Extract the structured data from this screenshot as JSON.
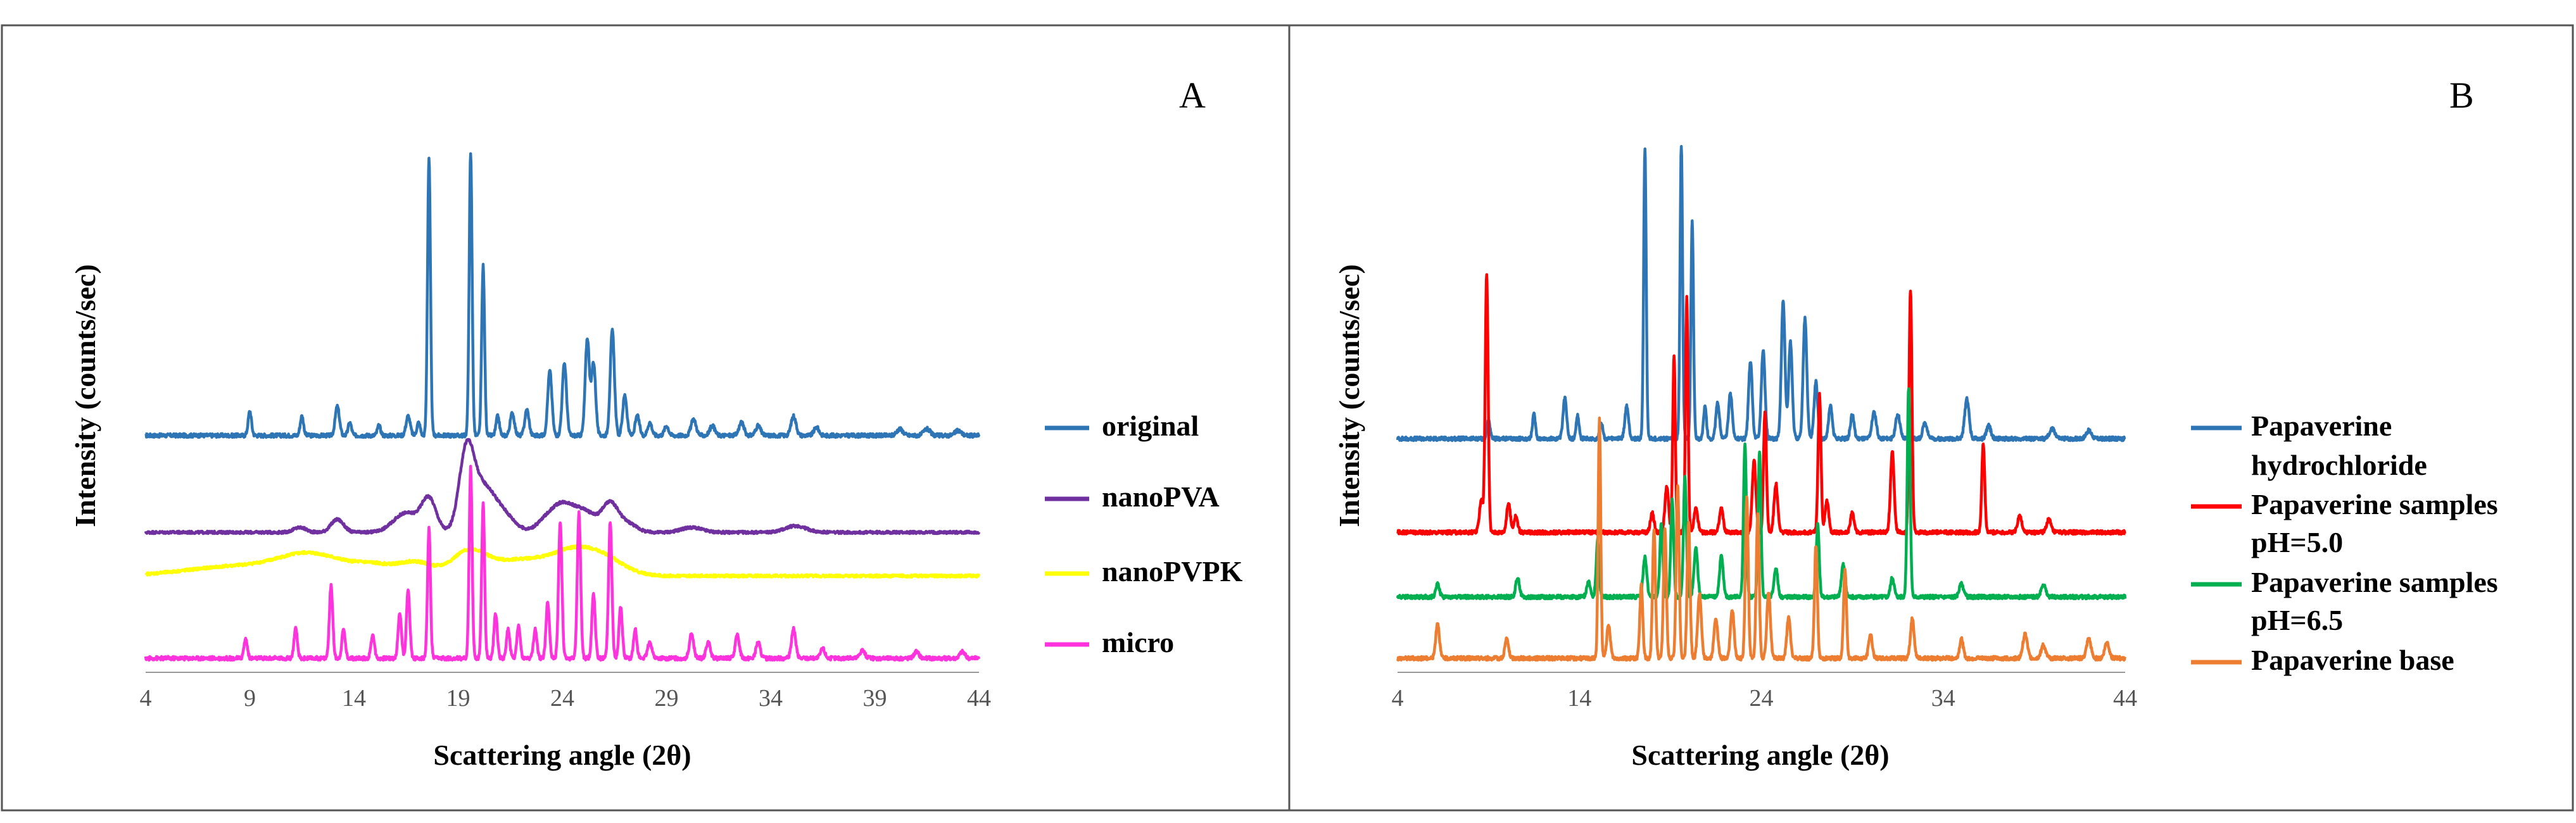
{
  "chart_data": [
    {
      "type": "line",
      "panel_label": "A",
      "xlabel": "Scattering angle (2θ)",
      "ylabel": "Intensity (counts/sec)",
      "xlim": [
        4,
        44
      ],
      "x_ticks": [
        4,
        9,
        14,
        19,
        24,
        29,
        34,
        39,
        44
      ],
      "x_tick_labels": [
        "4",
        "9",
        "14",
        "19",
        "24",
        "29",
        "34",
        "39",
        "44"
      ],
      "ylim": [
        0,
        340
      ],
      "grid": false,
      "legend_position": "right",
      "series": [
        {
          "name": "original",
          "color": "#2E75B6",
          "baseline": 142,
          "noise": 1.2,
          "peaks": [
            [
              9.0,
              15,
              0.08
            ],
            [
              11.5,
              12,
              0.08
            ],
            [
              13.2,
              18,
              0.1
            ],
            [
              13.8,
              8,
              0.08
            ],
            [
              15.2,
              6,
              0.08
            ],
            [
              16.6,
              12,
              0.1
            ],
            [
              17.1,
              8,
              0.08
            ],
            [
              17.6,
              172,
              0.07
            ],
            [
              19.6,
              175,
              0.07
            ],
            [
              20.2,
              105,
              0.07
            ],
            [
              20.9,
              12,
              0.08
            ],
            [
              21.6,
              14,
              0.1
            ],
            [
              22.3,
              16,
              0.1
            ],
            [
              23.4,
              40,
              0.1
            ],
            [
              24.1,
              45,
              0.1
            ],
            [
              25.2,
              60,
              0.1
            ],
            [
              25.5,
              45,
              0.1
            ],
            [
              26.4,
              65,
              0.1
            ],
            [
              27.0,
              25,
              0.1
            ],
            [
              27.6,
              12,
              0.1
            ],
            [
              28.2,
              8,
              0.1
            ],
            [
              29.0,
              6,
              0.1
            ],
            [
              30.3,
              10,
              0.12
            ],
            [
              31.2,
              6,
              0.12
            ],
            [
              32.6,
              8,
              0.12
            ],
            [
              33.4,
              6,
              0.12
            ],
            [
              35.1,
              12,
              0.12
            ],
            [
              36.2,
              5,
              0.12
            ],
            [
              40.2,
              4,
              0.15
            ],
            [
              41.5,
              4,
              0.15
            ],
            [
              43.0,
              3,
              0.15
            ]
          ]
        },
        {
          "name": "nanoPVA",
          "color": "#7030A0",
          "baseline": 82,
          "noise": 0.8,
          "peaks": [
            [
              11.4,
              3,
              0.3
            ],
            [
              13.2,
              8,
              0.3
            ],
            [
              16.5,
              12,
              0.6
            ],
            [
              17.6,
              20,
              0.35
            ],
            [
              19.4,
              45,
              0.35
            ],
            [
              20.2,
              28,
              0.6
            ],
            [
              21.3,
              8,
              0.5
            ],
            [
              23.3,
              8,
              0.5
            ],
            [
              24.1,
              15,
              0.5
            ],
            [
              25.1,
              12,
              0.5
            ],
            [
              26.3,
              18,
              0.4
            ],
            [
              27.2,
              5,
              0.4
            ],
            [
              30.2,
              3,
              0.5
            ],
            [
              35.2,
              4,
              0.5
            ]
          ]
        },
        {
          "name": "nanoPVPK",
          "color": "#FFFF00",
          "baseline": 55,
          "noise": 0.8,
          "peaks": [
            [
              8.5,
              6,
              2.5
            ],
            [
              12.0,
              12,
              1.5
            ],
            [
              15.0,
              6,
              1.0
            ],
            [
              17.0,
              8,
              0.8
            ],
            [
              19.5,
              14,
              0.8
            ],
            [
              22.0,
              10,
              1.5
            ],
            [
              24.5,
              12,
              1.0
            ],
            [
              26.0,
              10,
              1.0
            ]
          ]
        },
        {
          "name": "micro",
          "color": "#FF33DD",
          "baseline": 4,
          "noise": 1.2,
          "peaks": [
            [
              8.8,
              12,
              0.08
            ],
            [
              11.2,
              18,
              0.08
            ],
            [
              12.9,
              45,
              0.08
            ],
            [
              13.5,
              18,
              0.08
            ],
            [
              14.9,
              15,
              0.08
            ],
            [
              16.2,
              28,
              0.08
            ],
            [
              16.6,
              42,
              0.08
            ],
            [
              17.6,
              80,
              0.07
            ],
            [
              19.6,
              118,
              0.07
            ],
            [
              20.2,
              96,
              0.07
            ],
            [
              20.8,
              28,
              0.08
            ],
            [
              21.4,
              18,
              0.08
            ],
            [
              21.9,
              20,
              0.08
            ],
            [
              22.7,
              18,
              0.08
            ],
            [
              23.3,
              35,
              0.08
            ],
            [
              23.9,
              85,
              0.08
            ],
            [
              24.8,
              90,
              0.08
            ],
            [
              25.5,
              40,
              0.08
            ],
            [
              26.3,
              85,
              0.08
            ],
            [
              26.8,
              32,
              0.08
            ],
            [
              27.5,
              18,
              0.08
            ],
            [
              28.2,
              10,
              0.1
            ],
            [
              30.2,
              15,
              0.1
            ],
            [
              31.0,
              10,
              0.1
            ],
            [
              32.4,
              14,
              0.1
            ],
            [
              33.4,
              10,
              0.1
            ],
            [
              35.1,
              18,
              0.1
            ],
            [
              36.5,
              6,
              0.1
            ],
            [
              38.4,
              5,
              0.12
            ],
            [
              41.0,
              4,
              0.12
            ],
            [
              43.2,
              4,
              0.12
            ]
          ]
        }
      ]
    },
    {
      "type": "line",
      "panel_label": "B",
      "xlabel": "Scattering angle (2θ)",
      "ylabel": "Intensity (counts/sec)",
      "xlim": [
        4,
        44
      ],
      "x_ticks": [
        4,
        14,
        24,
        34,
        44
      ],
      "x_tick_labels": [
        "4",
        "14",
        "24",
        "34",
        "44"
      ],
      "ylim": [
        0,
        340
      ],
      "grid": false,
      "legend_position": "right",
      "series": [
        {
          "name": "Papaverine hydrochloride",
          "legend_lines": [
            "Papaverine",
            "hydrochloride"
          ],
          "color": "#2E75B6",
          "baseline": 140,
          "noise": 1.2,
          "peaks": [
            [
              9.0,
              12,
              0.08
            ],
            [
              11.5,
              15,
              0.08
            ],
            [
              13.2,
              25,
              0.1
            ],
            [
              13.9,
              14,
              0.08
            ],
            [
              15.2,
              10,
              0.08
            ],
            [
              16.6,
              20,
              0.1
            ],
            [
              17.6,
              180,
              0.07
            ],
            [
              19.6,
              182,
              0.07
            ],
            [
              20.2,
              135,
              0.07
            ],
            [
              20.9,
              20,
              0.08
            ],
            [
              21.6,
              22,
              0.1
            ],
            [
              22.3,
              28,
              0.1
            ],
            [
              23.4,
              48,
              0.1
            ],
            [
              24.1,
              55,
              0.1
            ],
            [
              25.2,
              85,
              0.1
            ],
            [
              25.6,
              60,
              0.1
            ],
            [
              26.4,
              75,
              0.1
            ],
            [
              27.0,
              35,
              0.1
            ],
            [
              27.8,
              20,
              0.1
            ],
            [
              29.0,
              15,
              0.1
            ],
            [
              30.2,
              16,
              0.12
            ],
            [
              31.5,
              15,
              0.12
            ],
            [
              33.0,
              10,
              0.12
            ],
            [
              35.3,
              25,
              0.12
            ],
            [
              36.5,
              8,
              0.12
            ],
            [
              40.0,
              6,
              0.15
            ],
            [
              42.0,
              5,
              0.15
            ]
          ]
        },
        {
          "name": "Papaverine samples pH=5.0",
          "legend_lines": [
            "Papaverine samples",
            "pH=5.0"
          ],
          "color": "#FF0000",
          "baseline": 82,
          "noise": 1.2,
          "peaks": [
            [
              8.9,
              160,
              0.08
            ],
            [
              8.6,
              20,
              0.1
            ],
            [
              10.1,
              18,
              0.1
            ],
            [
              10.5,
              10,
              0.1
            ],
            [
              18.0,
              12,
              0.1
            ],
            [
              18.8,
              28,
              0.1
            ],
            [
              19.2,
              110,
              0.07
            ],
            [
              19.9,
              145,
              0.07
            ],
            [
              20.4,
              15,
              0.1
            ],
            [
              21.8,
              15,
              0.1
            ],
            [
              23.6,
              45,
              0.1
            ],
            [
              24.2,
              75,
              0.08
            ],
            [
              24.8,
              30,
              0.1
            ],
            [
              27.2,
              85,
              0.08
            ],
            [
              27.6,
              20,
              0.1
            ],
            [
              29.0,
              12,
              0.1
            ],
            [
              31.2,
              50,
              0.1
            ],
            [
              32.2,
              150,
              0.08
            ],
            [
              36.2,
              55,
              0.08
            ],
            [
              38.2,
              10,
              0.12
            ],
            [
              39.8,
              8,
              0.12
            ]
          ]
        },
        {
          "name": "Papaverine samples pH=6.5",
          "legend_lines": [
            "Papaverine samples",
            "pH=6.5"
          ],
          "color": "#00B050",
          "baseline": 42,
          "noise": 1.2,
          "peaks": [
            [
              6.2,
              8,
              0.1
            ],
            [
              10.6,
              12,
              0.1
            ],
            [
              14.5,
              10,
              0.1
            ],
            [
              15.0,
              35,
              0.08
            ],
            [
              17.6,
              25,
              0.1
            ],
            [
              18.5,
              45,
              0.08
            ],
            [
              19.1,
              60,
              0.08
            ],
            [
              19.8,
              75,
              0.08
            ],
            [
              20.4,
              30,
              0.1
            ],
            [
              21.8,
              25,
              0.1
            ],
            [
              23.1,
              95,
              0.08
            ],
            [
              23.9,
              90,
              0.08
            ],
            [
              24.8,
              18,
              0.1
            ],
            [
              27.1,
              45,
              0.08
            ],
            [
              28.5,
              20,
              0.1
            ],
            [
              31.2,
              12,
              0.1
            ],
            [
              32.1,
              130,
              0.08
            ],
            [
              35.0,
              8,
              0.12
            ],
            [
              39.5,
              8,
              0.12
            ]
          ]
        },
        {
          "name": "Papaverine base",
          "legend_lines": [
            "Papaverine base"
          ],
          "color": "#ED7D31",
          "baseline": 4,
          "noise": 1.2,
          "peaks": [
            [
              6.2,
              22,
              0.1
            ],
            [
              10.0,
              12,
              0.1
            ],
            [
              15.1,
              148,
              0.07
            ],
            [
              15.6,
              20,
              0.1
            ],
            [
              17.4,
              45,
              0.08
            ],
            [
              18.1,
              80,
              0.08
            ],
            [
              18.7,
              80,
              0.08
            ],
            [
              19.4,
              108,
              0.08
            ],
            [
              20.0,
              85,
              0.08
            ],
            [
              20.6,
              40,
              0.1
            ],
            [
              21.5,
              25,
              0.1
            ],
            [
              22.4,
              30,
              0.1
            ],
            [
              23.2,
              100,
              0.08
            ],
            [
              23.8,
              90,
              0.08
            ],
            [
              24.4,
              40,
              0.1
            ],
            [
              25.5,
              25,
              0.1
            ],
            [
              27.0,
              70,
              0.08
            ],
            [
              28.6,
              55,
              0.08
            ],
            [
              30.0,
              15,
              0.1
            ],
            [
              32.3,
              25,
              0.1
            ],
            [
              35.0,
              12,
              0.1
            ],
            [
              38.5,
              15,
              0.12
            ],
            [
              39.5,
              8,
              0.12
            ],
            [
              42.0,
              12,
              0.12
            ],
            [
              43.0,
              10,
              0.12
            ]
          ]
        }
      ]
    }
  ]
}
